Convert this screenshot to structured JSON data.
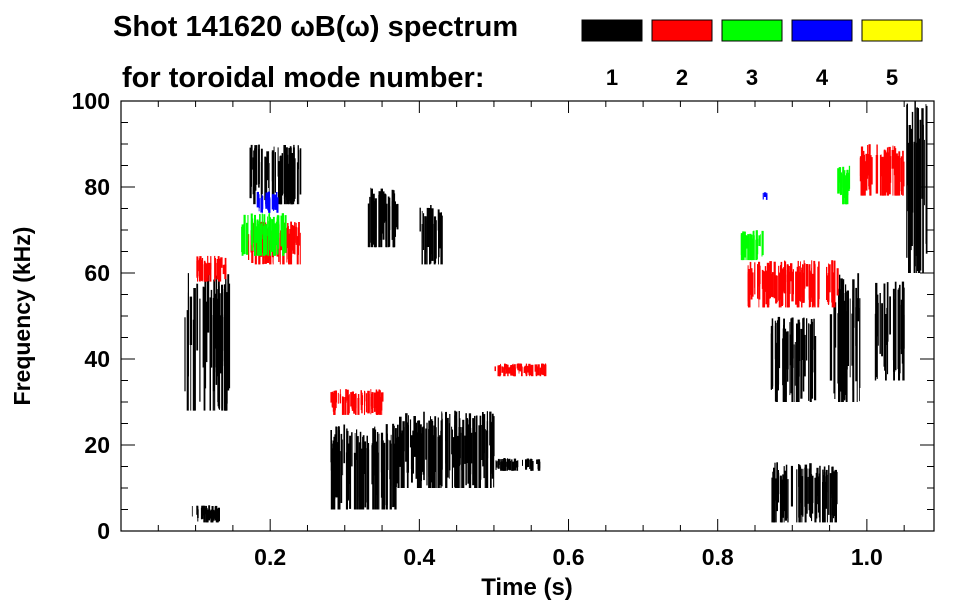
{
  "header": {
    "title": "Shot 141620 ωB(ω) spectrum",
    "subtitle": "for toroidal mode number:"
  },
  "legend": {
    "items": [
      {
        "label": "1",
        "color": "#000000"
      },
      {
        "label": "2",
        "color": "#ff0000"
      },
      {
        "label": "3",
        "color": "#00ff00"
      },
      {
        "label": "4",
        "color": "#0000ff"
      },
      {
        "label": "5",
        "color": "#ffff00"
      }
    ]
  },
  "chart_data": {
    "type": "heatmap",
    "title": "Shot 141620 ωB(ω) spectrum",
    "xlabel": "Time (s)",
    "ylabel": "Frequency (kHz)",
    "xlim": [
      0.0,
      1.09
    ],
    "ylim": [
      0,
      100
    ],
    "x_ticks": [
      "0.2",
      "0.4",
      "0.6",
      "0.8",
      "1.0"
    ],
    "y_ticks": [
      "0",
      "20",
      "40",
      "60",
      "80",
      "100"
    ],
    "legend_title": "for toroidal mode number:",
    "legend_placement": "top",
    "series": [
      {
        "name": "1",
        "color": "#000000",
        "regions": [
          {
            "t0": 0.085,
            "t1": 0.145,
            "f0": 28,
            "f1": 60
          },
          {
            "t0": 0.095,
            "t1": 0.13,
            "f0": 2,
            "f1": 6
          },
          {
            "t0": 0.17,
            "t1": 0.24,
            "f0": 76,
            "f1": 90
          },
          {
            "t0": 0.28,
            "t1": 0.37,
            "f0": 5,
            "f1": 25
          },
          {
            "t0": 0.37,
            "t1": 0.5,
            "f0": 10,
            "f1": 28
          },
          {
            "t0": 0.5,
            "t1": 0.56,
            "f0": 14,
            "f1": 17
          },
          {
            "t0": 0.33,
            "t1": 0.37,
            "f0": 66,
            "f1": 80
          },
          {
            "t0": 0.4,
            "t1": 0.43,
            "f0": 62,
            "f1": 76
          },
          {
            "t0": 0.87,
            "t1": 0.93,
            "f0": 30,
            "f1": 50
          },
          {
            "t0": 0.87,
            "t1": 0.96,
            "f0": 2,
            "f1": 16
          },
          {
            "t0": 0.95,
            "t1": 0.99,
            "f0": 30,
            "f1": 60
          },
          {
            "t0": 1.01,
            "t1": 1.05,
            "f0": 35,
            "f1": 58
          },
          {
            "t0": 1.05,
            "t1": 1.08,
            "f0": 60,
            "f1": 100
          }
        ]
      },
      {
        "name": "2",
        "color": "#ff0000",
        "regions": [
          {
            "t0": 0.1,
            "t1": 0.14,
            "f0": 58,
            "f1": 64
          },
          {
            "t0": 0.17,
            "t1": 0.24,
            "f0": 62,
            "f1": 72
          },
          {
            "t0": 0.28,
            "t1": 0.35,
            "f0": 27,
            "f1": 33
          },
          {
            "t0": 0.5,
            "t1": 0.57,
            "f0": 36,
            "f1": 39
          },
          {
            "t0": 0.84,
            "t1": 0.96,
            "f0": 52,
            "f1": 63
          },
          {
            "t0": 0.99,
            "t1": 1.05,
            "f0": 78,
            "f1": 90
          }
        ]
      },
      {
        "name": "3",
        "color": "#00ff00",
        "regions": [
          {
            "t0": 0.16,
            "t1": 0.22,
            "f0": 64,
            "f1": 74
          },
          {
            "t0": 0.83,
            "t1": 0.86,
            "f0": 63,
            "f1": 70
          },
          {
            "t0": 0.96,
            "t1": 0.98,
            "f0": 76,
            "f1": 85
          }
        ]
      },
      {
        "name": "4",
        "color": "#0000ff",
        "regions": [
          {
            "t0": 0.18,
            "t1": 0.21,
            "f0": 74,
            "f1": 79
          },
          {
            "t0": 0.86,
            "t1": 0.865,
            "f0": 77,
            "f1": 79
          }
        ]
      }
    ],
    "grid": false
  }
}
